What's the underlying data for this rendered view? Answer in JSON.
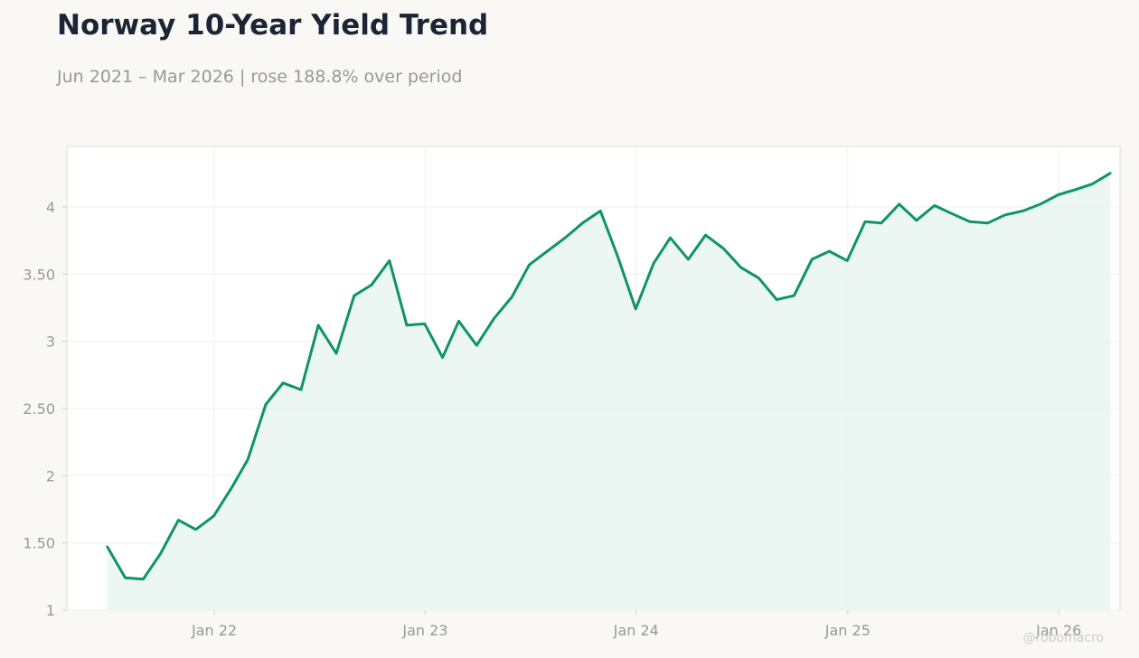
{
  "header": {
    "title": "Norway 10-Year Yield Trend",
    "subtitle": "Jun 2021 – Mar 2026 | rose 188.8% over period"
  },
  "watermark": "@robomacro",
  "colors": {
    "line": "#0f9467",
    "area": "#e9f5f0",
    "background": "#f9f8f5",
    "plot_background": "#ffffff",
    "grid": "#efefec",
    "text_muted": "#999891",
    "title": "#1c2536"
  },
  "chart_data": {
    "type": "area",
    "title": "Norway 10-Year Yield Trend",
    "subtitle": "Jun 2021 – Mar 2026 | rose 188.8% over period",
    "xlabel": "",
    "ylabel": "",
    "ylim": [
      1,
      4.45
    ],
    "xlim": [
      "2021-04-21",
      "2026-04-17"
    ],
    "grid": true,
    "legend": "none",
    "x_ticks": [
      {
        "date": "2022-01-01",
        "label": "Jan 22"
      },
      {
        "date": "2023-01-01",
        "label": "Jan 23"
      },
      {
        "date": "2024-01-01",
        "label": "Jan 24"
      },
      {
        "date": "2025-01-01",
        "label": "Jan 25"
      },
      {
        "date": "2026-01-01",
        "label": "Jan 26"
      }
    ],
    "y_ticks": [
      {
        "value": 1,
        "label": "1"
      },
      {
        "value": 1.5,
        "label": "1.50"
      },
      {
        "value": 2,
        "label": "2"
      },
      {
        "value": 2.5,
        "label": "2.50"
      },
      {
        "value": 3,
        "label": "3"
      },
      {
        "value": 3.5,
        "label": "3.50"
      },
      {
        "value": 4,
        "label": "4"
      }
    ],
    "series": [
      {
        "points": [
          [
            "2021-06-30",
            1.47
          ],
          [
            "2021-07-31",
            1.24
          ],
          [
            "2021-08-31",
            1.23
          ],
          [
            "2021-09-30",
            1.42
          ],
          [
            "2021-10-31",
            1.67
          ],
          [
            "2021-11-30",
            1.6
          ],
          [
            "2021-12-31",
            1.7
          ],
          [
            "2022-01-31",
            1.91
          ],
          [
            "2022-02-28",
            2.12
          ],
          [
            "2022-03-31",
            2.53
          ],
          [
            "2022-04-30",
            2.69
          ],
          [
            "2022-05-31",
            2.64
          ],
          [
            "2022-06-30",
            3.12
          ],
          [
            "2022-07-31",
            2.91
          ],
          [
            "2022-08-31",
            3.34
          ],
          [
            "2022-09-30",
            3.42
          ],
          [
            "2022-10-31",
            3.6
          ],
          [
            "2022-11-30",
            3.12
          ],
          [
            "2022-12-31",
            3.13
          ],
          [
            "2023-01-31",
            2.88
          ],
          [
            "2023-02-28",
            3.15
          ],
          [
            "2023-03-31",
            2.97
          ],
          [
            "2023-04-30",
            3.17
          ],
          [
            "2023-05-31",
            3.33
          ],
          [
            "2023-06-30",
            3.57
          ],
          [
            "2023-07-31",
            3.67
          ],
          [
            "2023-08-31",
            3.77
          ],
          [
            "2023-09-30",
            3.88
          ],
          [
            "2023-10-31",
            3.97
          ],
          [
            "2023-11-30",
            3.63
          ],
          [
            "2023-12-31",
            3.24
          ],
          [
            "2024-01-31",
            3.58
          ],
          [
            "2024-02-29",
            3.77
          ],
          [
            "2024-03-31",
            3.61
          ],
          [
            "2024-04-30",
            3.79
          ],
          [
            "2024-05-31",
            3.69
          ],
          [
            "2024-06-30",
            3.55
          ],
          [
            "2024-07-31",
            3.47
          ],
          [
            "2024-08-31",
            3.31
          ],
          [
            "2024-09-30",
            3.34
          ],
          [
            "2024-10-31",
            3.61
          ],
          [
            "2024-11-30",
            3.67
          ],
          [
            "2024-12-31",
            3.6
          ],
          [
            "2025-01-31",
            3.89
          ],
          [
            "2025-02-28",
            3.88
          ],
          [
            "2025-03-31",
            4.02
          ],
          [
            "2025-04-30",
            3.9
          ],
          [
            "2025-05-31",
            4.01
          ],
          [
            "2025-06-30",
            3.95
          ],
          [
            "2025-07-31",
            3.89
          ],
          [
            "2025-08-31",
            3.88
          ],
          [
            "2025-09-30",
            3.94
          ],
          [
            "2025-10-31",
            3.97
          ],
          [
            "2025-11-30",
            4.02
          ],
          [
            "2025-12-31",
            4.09
          ],
          [
            "2026-01-31",
            4.13
          ],
          [
            "2026-02-28",
            4.17
          ],
          [
            "2026-03-31",
            4.25
          ]
        ]
      }
    ]
  }
}
